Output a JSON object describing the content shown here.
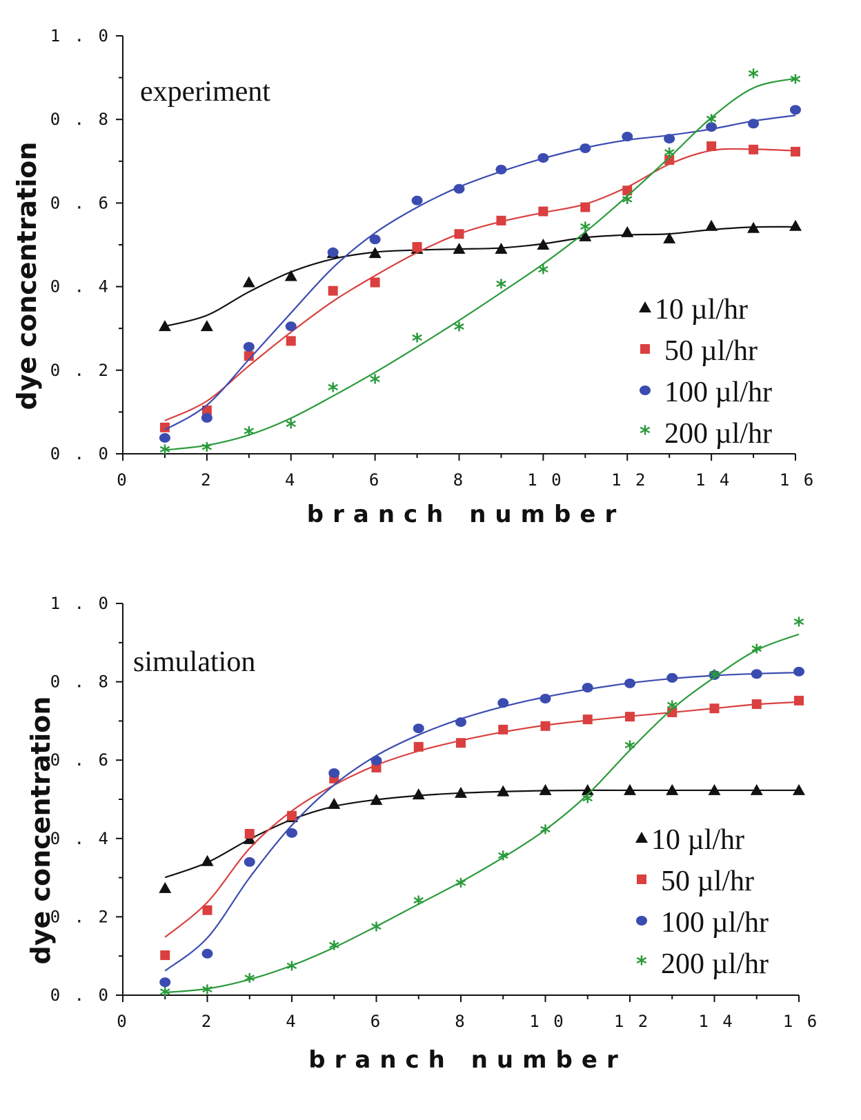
{
  "chart_data": [
    {
      "type": "scatter",
      "title": "experiment",
      "xlabel": "branch number",
      "ylabel": "dye concentration",
      "xlim": [
        0,
        16
      ],
      "ylim": [
        0,
        1.0
      ],
      "xticks": [
        "0",
        "2",
        "4",
        "6",
        "8",
        "10",
        "12",
        "14",
        "16"
      ],
      "yticks": [
        "0.0",
        "0.2",
        "0.4",
        "0.6",
        "0.8",
        "1.0"
      ],
      "legend_position": "lower-right",
      "x": [
        1,
        2,
        3,
        4,
        5,
        6,
        7,
        8,
        9,
        10,
        11,
        12,
        13,
        14,
        15,
        16
      ],
      "series": [
        {
          "name": "10 µl/hr",
          "marker": "triangle",
          "color": "#111111",
          "values": [
            0.305,
            0.305,
            0.41,
            0.425,
            0.48,
            0.48,
            0.49,
            0.49,
            0.49,
            0.5,
            0.52,
            0.53,
            0.515,
            0.545,
            0.54,
            0.545
          ]
        },
        {
          "name": "50 µl/hr",
          "marker": "square",
          "color": "#d9403f",
          "values": [
            0.063,
            0.104,
            0.234,
            0.27,
            0.39,
            0.41,
            0.495,
            0.526,
            0.558,
            0.58,
            0.59,
            0.63,
            0.703,
            0.736,
            0.728,
            0.723
          ]
        },
        {
          "name": "100 µl/hr",
          "marker": "circle",
          "color": "#3b4cb0",
          "values": [
            0.038,
            0.086,
            0.256,
            0.305,
            0.482,
            0.513,
            0.606,
            0.634,
            0.68,
            0.708,
            0.731,
            0.759,
            0.754,
            0.782,
            0.79,
            0.823
          ]
        },
        {
          "name": "200 µl/hr",
          "marker": "star",
          "color": "#2a9a3a",
          "values": [
            0.007,
            0.012,
            0.05,
            0.068,
            0.155,
            0.175,
            0.274,
            0.3,
            0.403,
            0.437,
            0.54,
            0.605,
            0.717,
            0.797,
            0.906,
            0.893
          ]
        }
      ]
    },
    {
      "type": "scatter",
      "title": "simulation",
      "xlabel": "branch number",
      "ylabel": "dye concentration",
      "xlim": [
        0,
        16
      ],
      "ylim": [
        0,
        1.0
      ],
      "xticks": [
        "0",
        "2",
        "4",
        "6",
        "8",
        "10",
        "12",
        "14",
        "16"
      ],
      "yticks": [
        "0.0",
        "0.2",
        "0.4",
        "0.6",
        "0.8",
        "1.0"
      ],
      "legend_position": "lower-right",
      "x": [
        1,
        2,
        3,
        4,
        5,
        6,
        7,
        8,
        9,
        10,
        11,
        12,
        13,
        14,
        15,
        16
      ],
      "series": [
        {
          "name": "10 µl/hr",
          "marker": "triangle",
          "color": "#111111",
          "values": [
            0.273,
            0.342,
            0.398,
            0.454,
            0.488,
            0.498,
            0.512,
            0.516,
            0.52,
            0.523,
            0.523,
            0.523,
            0.523,
            0.523,
            0.523,
            0.523
          ]
        },
        {
          "name": "50 µl/hr",
          "marker": "square",
          "color": "#d9403f",
          "values": [
            0.102,
            0.217,
            0.412,
            0.458,
            0.553,
            0.581,
            0.634,
            0.644,
            0.678,
            0.687,
            0.704,
            0.711,
            0.722,
            0.732,
            0.743,
            0.752
          ]
        },
        {
          "name": "100 µl/hr",
          "marker": "circle",
          "color": "#3b4cb0",
          "values": [
            0.033,
            0.106,
            0.34,
            0.414,
            0.567,
            0.599,
            0.681,
            0.697,
            0.746,
            0.757,
            0.785,
            0.796,
            0.81,
            0.817,
            0.82,
            0.826
          ]
        },
        {
          "name": "200 µl/hr",
          "marker": "star",
          "color": "#2a9a3a",
          "values": [
            0.004,
            0.011,
            0.04,
            0.07,
            0.123,
            0.171,
            0.238,
            0.283,
            0.352,
            0.419,
            0.498,
            0.634,
            0.736,
            0.815,
            0.88,
            0.949
          ]
        }
      ]
    }
  ]
}
